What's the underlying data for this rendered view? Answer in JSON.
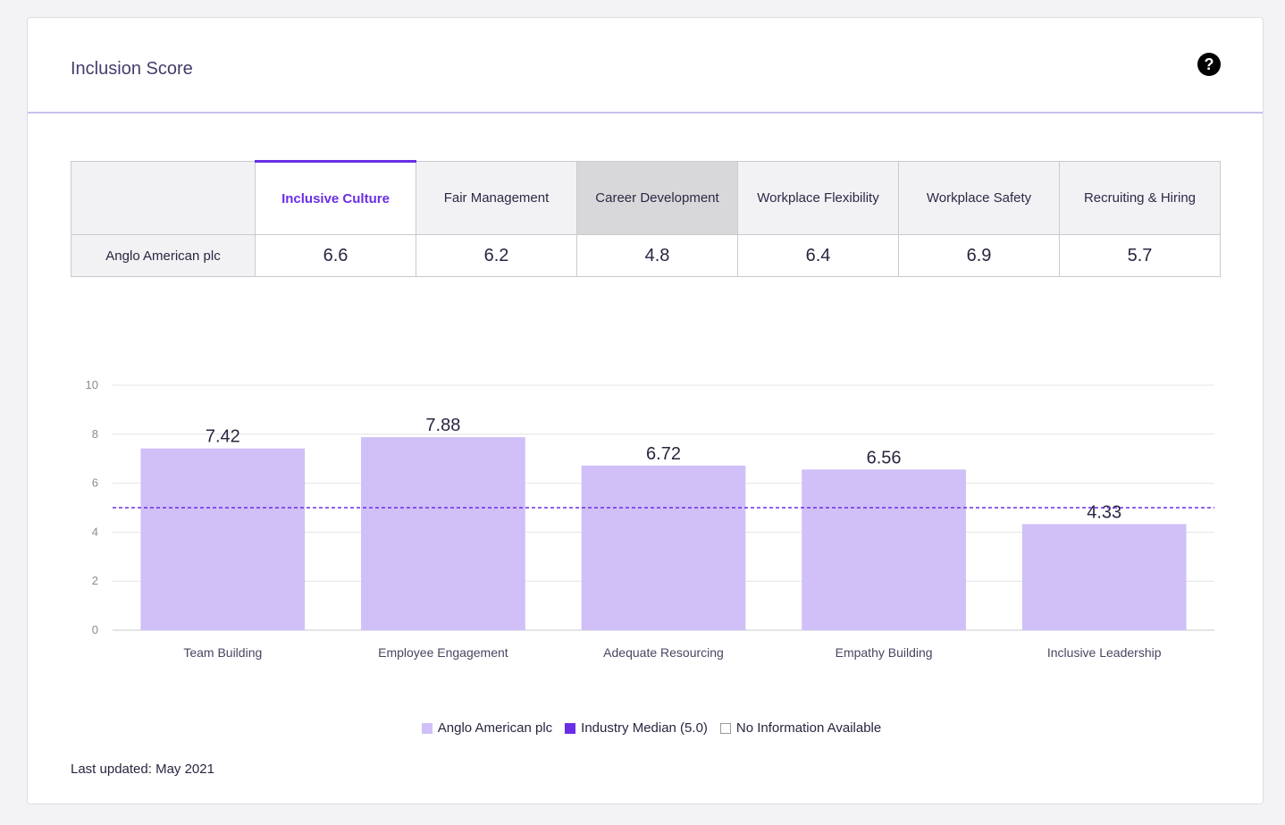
{
  "card": {
    "title": "Inclusion Score",
    "help_icon": "question-circle-icon"
  },
  "score_table": {
    "columns": [
      {
        "label": "Inclusive Culture",
        "state": "active"
      },
      {
        "label": "Fair Management",
        "state": "default"
      },
      {
        "label": "Career Development",
        "state": "hovered"
      },
      {
        "label": "Workplace Flexibility",
        "state": "default"
      },
      {
        "label": "Workplace Safety",
        "state": "default"
      },
      {
        "label": "Recruiting & Hiring",
        "state": "default"
      }
    ],
    "row": {
      "label": "Anglo American plc",
      "values": [
        "6.6",
        "6.2",
        "4.8",
        "6.4",
        "6.9",
        "5.7"
      ]
    }
  },
  "chart_data": {
    "type": "bar",
    "categories": [
      "Team Building",
      "Employee Engagement",
      "Adequate Resourcing",
      "Empathy Building",
      "Inclusive Leadership"
    ],
    "series": [
      {
        "name": "Anglo American plc",
        "values": [
          7.42,
          7.88,
          6.72,
          6.56,
          4.33
        ],
        "color": "#d0c0f7"
      }
    ],
    "data_labels": [
      "7.42",
      "7.88",
      "6.72",
      "6.56",
      "4.33"
    ],
    "reference_line": {
      "name": "Industry Median (5.0)",
      "value": 5.0,
      "color": "#6a2ee6",
      "style": "dashed"
    },
    "yticks": [
      0,
      2,
      4,
      6,
      8,
      10
    ],
    "ylim": [
      0,
      10
    ],
    "grid": true,
    "title": "",
    "xlabel": "",
    "ylabel": ""
  },
  "legend": {
    "items": [
      {
        "label": "Anglo American plc"
      },
      {
        "label": "Industry Median (5.0)"
      },
      {
        "label": "No Information Available"
      }
    ]
  },
  "footer": {
    "last_updated": "Last updated: May 2021"
  }
}
